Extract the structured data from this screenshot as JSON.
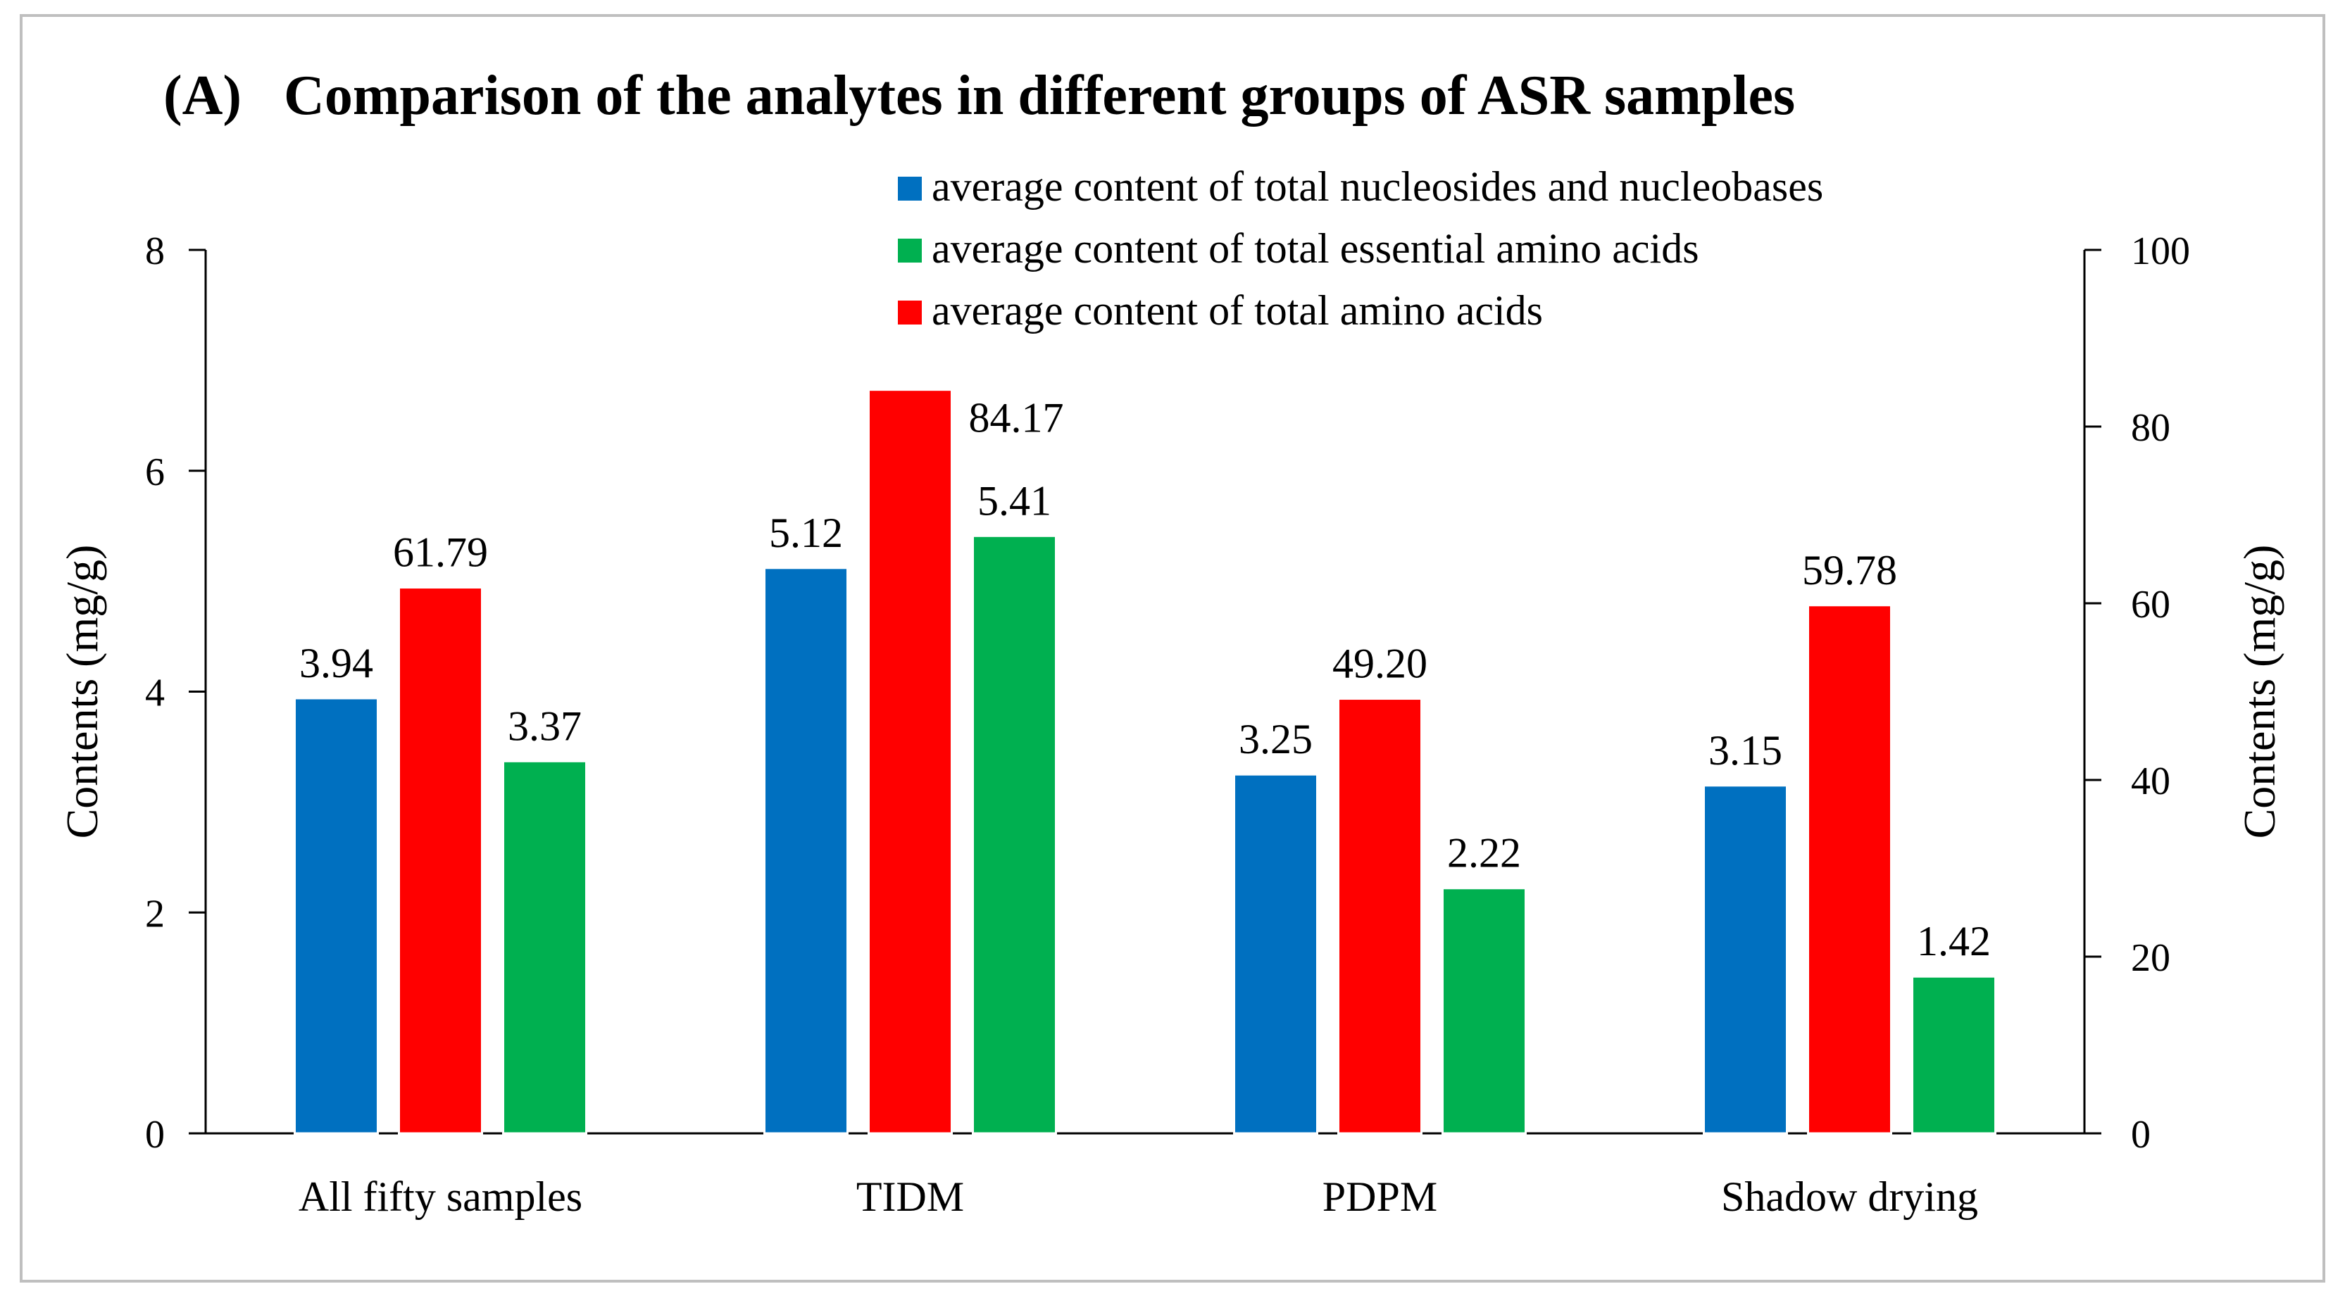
{
  "chart_data": {
    "type": "bar",
    "title": "(A)   Comparison of the analytes in different groups of ASR samples",
    "categories": [
      "All fifty samples",
      "TIDM",
      "PDPM",
      "Shadow drying"
    ],
    "ylabel": "Contents  (mg/g)",
    "ylim": [
      0,
      8
    ],
    "yticks": [
      0,
      2,
      4,
      6,
      8
    ],
    "y2label": "Contents (mg/g)",
    "y2lim": [
      0,
      100
    ],
    "y2ticks": [
      0,
      20,
      40,
      60,
      80,
      100
    ],
    "grid": false,
    "legend_position": "top-right",
    "series": [
      {
        "name": "average  content of total nucleosides and nucleobases",
        "axis": "left",
        "color": "#0070c0",
        "values": [
          3.94,
          5.12,
          3.25,
          3.15
        ],
        "labels": [
          "3.94",
          "5.12",
          "3.25",
          "3.15"
        ]
      },
      {
        "name": "average  content of total amino  acids",
        "axis": "right",
        "color": "#ff0000",
        "values": [
          61.79,
          84.17,
          49.2,
          59.78
        ],
        "labels": [
          "61.79",
          "84.17",
          "49.20",
          "59.78"
        ]
      },
      {
        "name": "average  content of total essential  amino  acids",
        "axis": "left",
        "color": "#00b050",
        "values": [
          3.37,
          5.41,
          2.22,
          1.42
        ],
        "labels": [
          "3.37",
          "5.41",
          "2.22",
          "1.42"
        ]
      }
    ],
    "legend_order": [
      0,
      2,
      1
    ]
  }
}
